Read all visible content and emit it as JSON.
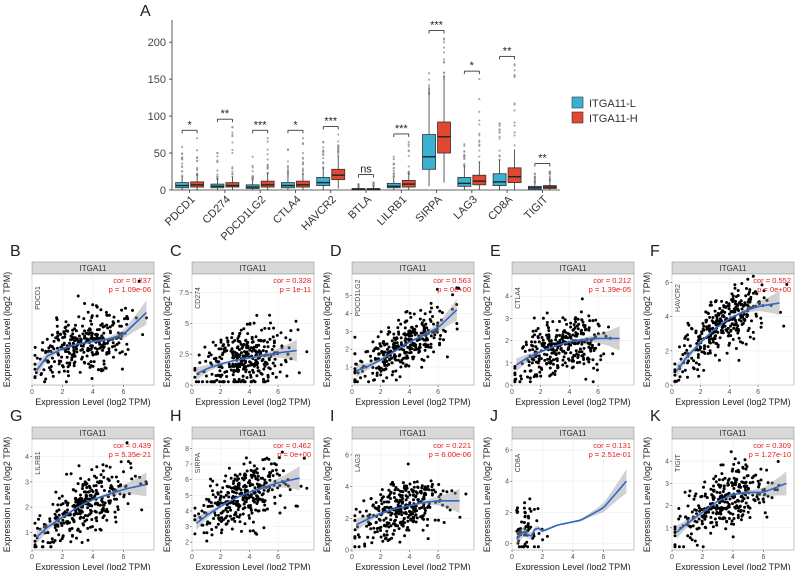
{
  "figure": {
    "panel_A": {
      "letter": "A",
      "legend": {
        "title": "",
        "entries": [
          {
            "name": "ITGA11-L",
            "color": "#3ab1d1"
          },
          {
            "name": "ITGA11-H",
            "color": "#e2472f"
          }
        ]
      }
    }
  },
  "chart_data": [
    {
      "type": "box",
      "panel": "A",
      "ylim": [
        0,
        230
      ],
      "yticks": [
        0,
        50,
        100,
        150,
        200
      ],
      "xlabel": "",
      "ylabel": "",
      "legend_position": "right",
      "categories": [
        "PDCD1",
        "CD274",
        "PDCD1LG2",
        "CTLA4",
        "HAVCR2",
        "BTLA",
        "LILRB1",
        "SIRPA",
        "LAG3",
        "CD8A",
        "TIGIT"
      ],
      "significance": [
        "*",
        "**",
        "***",
        "*",
        "***",
        "ns",
        "***",
        "***",
        "*",
        "**",
        "**"
      ],
      "series": [
        {
          "name": "ITGA11-L",
          "color": "#3ab1d1",
          "boxes": [
            {
              "q1": 3,
              "median": 6,
              "q3": 10,
              "whisker_low": 0,
              "whisker_high": 18,
              "outlier_max": 58
            },
            {
              "q1": 3,
              "median": 5,
              "q3": 8,
              "whisker_low": 0,
              "whisker_high": 15,
              "outlier_max": 50
            },
            {
              "q1": 2,
              "median": 4,
              "q3": 7,
              "whisker_low": 0,
              "whisker_high": 14,
              "outlier_max": 45
            },
            {
              "q1": 3,
              "median": 6,
              "q3": 10,
              "whisker_low": 0,
              "whisker_high": 18,
              "outlier_max": 55
            },
            {
              "q1": 6,
              "median": 10,
              "q3": 17,
              "whisker_low": 0,
              "whisker_high": 30,
              "outlier_max": 65
            },
            {
              "q1": 0,
              "median": 1,
              "q3": 2,
              "whisker_low": 0,
              "whisker_high": 4,
              "outlier_max": 8
            },
            {
              "q1": 3,
              "median": 5,
              "q3": 9,
              "whisker_low": 0,
              "whisker_high": 16,
              "outlier_max": 45
            },
            {
              "q1": 28,
              "median": 45,
              "q3": 75,
              "whisker_low": 5,
              "whisker_high": 130,
              "outlier_max": 158
            },
            {
              "q1": 5,
              "median": 9,
              "q3": 17,
              "whisker_low": 0,
              "whisker_high": 32,
              "outlier_max": 62
            },
            {
              "q1": 6,
              "median": 11,
              "q3": 22,
              "whisker_low": 0,
              "whisker_high": 40,
              "outlier_max": 90
            },
            {
              "q1": 1,
              "median": 3,
              "q3": 5,
              "whisker_low": 0,
              "whisker_high": 10,
              "outlier_max": 22
            }
          ]
        },
        {
          "name": "ITGA11-H",
          "color": "#e2472f",
          "boxes": [
            {
              "q1": 4,
              "median": 7,
              "q3": 11,
              "whisker_low": 0,
              "whisker_high": 20,
              "outlier_max": 70
            },
            {
              "q1": 4,
              "median": 6,
              "q3": 10,
              "whisker_low": 0,
              "whisker_high": 18,
              "outlier_max": 85
            },
            {
              "q1": 4,
              "median": 7,
              "q3": 12,
              "whisker_low": 0,
              "whisker_high": 22,
              "outlier_max": 70
            },
            {
              "q1": 4,
              "median": 7,
              "q3": 12,
              "whisker_low": 0,
              "whisker_high": 22,
              "outlier_max": 70
            },
            {
              "q1": 14,
              "median": 20,
              "q3": 28,
              "whisker_low": 2,
              "whisker_high": 45,
              "outlier_max": 75
            },
            {
              "q1": 0,
              "median": 1,
              "q3": 2,
              "whisker_low": 0,
              "whisker_high": 5,
              "outlier_max": 10
            },
            {
              "q1": 4,
              "median": 8,
              "q3": 13,
              "whisker_low": 0,
              "whisker_high": 22,
              "outlier_max": 65
            },
            {
              "q1": 50,
              "median": 72,
              "q3": 92,
              "whisker_low": 10,
              "whisker_high": 150,
              "outlier_max": 205
            },
            {
              "q1": 7,
              "median": 12,
              "q3": 20,
              "whisker_low": 0,
              "whisker_high": 38,
              "outlier_max": 150
            },
            {
              "q1": 10,
              "median": 18,
              "q3": 30,
              "whisker_low": 0,
              "whisker_high": 55,
              "outlier_max": 170
            },
            {
              "q1": 2,
              "median": 4,
              "q3": 6,
              "whisker_low": 0,
              "whisker_high": 12,
              "outlier_max": 25
            }
          ]
        }
      ]
    },
    {
      "type": "scatter",
      "panel": "B",
      "strip_title": "ITGA11",
      "gene": "PDCD1",
      "cor": "cor = 0.237",
      "p": "p = 1.09e-06",
      "xlim": [
        0,
        8
      ],
      "xticks": [
        0,
        2,
        4,
        6
      ],
      "ylim": [
        0,
        4.6
      ],
      "yticks": [],
      "xlabel": "Expression Level (log2 TPM)",
      "ylabel": "Expression Level (log2 TPM)",
      "fit": [
        [
          0.3,
          0.6
        ],
        [
          1,
          1.2
        ],
        [
          2,
          1.5
        ],
        [
          3,
          1.7
        ],
        [
          4,
          1.8
        ],
        [
          5,
          1.9
        ],
        [
          6,
          2.1
        ],
        [
          7.5,
          3.0
        ]
      ]
    },
    {
      "type": "scatter",
      "panel": "C",
      "strip_title": "ITGA11",
      "gene": "CD274",
      "cor": "cor = 0.328",
      "p": "p = 1e-11",
      "xlim": [
        0,
        8.5
      ],
      "xticks": [
        0,
        2,
        4,
        6
      ],
      "ylim": [
        0,
        9
      ],
      "yticks": [
        0,
        2.5,
        5,
        7.5
      ],
      "xlabel": "Expression Level (log2 TPM)",
      "ylabel": "Expression Level (log2 TPM)",
      "fit": [
        [
          0.3,
          0.9
        ],
        [
          1,
          1.3
        ],
        [
          2,
          1.7
        ],
        [
          3,
          2.0
        ],
        [
          4,
          2.2
        ],
        [
          5,
          2.4
        ],
        [
          6,
          2.6
        ],
        [
          7.3,
          2.8
        ]
      ]
    },
    {
      "type": "scatter",
      "panel": "D",
      "strip_title": "ITGA11",
      "gene": "PDCD1LG2",
      "cor": "cor = 0.563",
      "p": "p = 0e+00",
      "xlim": [
        0,
        8.5
      ],
      "xticks": [
        0,
        2,
        4,
        6
      ],
      "ylim": [
        0,
        6.2
      ],
      "yticks": [
        1,
        2,
        3,
        4,
        5
      ],
      "xlabel": "Expression Level (log2 TPM)",
      "ylabel": "Expression Level (log2 TPM)",
      "fit": [
        [
          0.3,
          0.8
        ],
        [
          1,
          1.0
        ],
        [
          2,
          1.4
        ],
        [
          3,
          1.9
        ],
        [
          4,
          2.4
        ],
        [
          5,
          2.8
        ],
        [
          6,
          3.2
        ],
        [
          7.3,
          4.2
        ]
      ]
    },
    {
      "type": "scatter",
      "panel": "E",
      "strip_title": "ITGA11",
      "gene": "CTLA4",
      "cor": "cor = 0.212",
      "p": "p = 1.39e-05",
      "xlim": [
        0,
        8.5
      ],
      "xticks": [
        0,
        2,
        4,
        6
      ],
      "ylim": [
        0,
        5
      ],
      "yticks": [
        0,
        1,
        2,
        3,
        4
      ],
      "xlabel": "Expression Level (log2 TPM)",
      "ylabel": "Expression Level (log2 TPM)",
      "fit": [
        [
          0.3,
          0.9
        ],
        [
          1,
          1.2
        ],
        [
          2,
          1.5
        ],
        [
          3,
          1.75
        ],
        [
          4,
          1.95
        ],
        [
          5,
          2.05
        ],
        [
          6,
          2.1
        ],
        [
          7.5,
          2.1
        ]
      ]
    },
    {
      "type": "scatter",
      "panel": "F",
      "strip_title": "ITGA11",
      "gene": "HAVCR2",
      "cor": "cor = 0.552",
      "p": "p = 0e+00",
      "xlim": [
        0,
        8.5
      ],
      "xticks": [
        0,
        2,
        4,
        6
      ],
      "ylim": [
        0,
        6.5
      ],
      "yticks": [
        0,
        2,
        4,
        6
      ],
      "xlabel": "Expression Level (log2 TPM)",
      "ylabel": "Expression Level (log2 TPM)",
      "fit": [
        [
          0.3,
          0.8
        ],
        [
          1,
          1.6
        ],
        [
          2,
          2.5
        ],
        [
          3,
          3.3
        ],
        [
          4,
          3.9
        ],
        [
          5,
          4.3
        ],
        [
          6,
          4.6
        ],
        [
          7.5,
          4.8
        ]
      ]
    },
    {
      "type": "scatter",
      "panel": "G",
      "strip_title": "ITGA11",
      "gene": "LILRB1",
      "cor": "cor = 0.439",
      "p": "p = 5.35e-21",
      "xlim": [
        0,
        8
      ],
      "xticks": [
        0,
        2,
        4,
        6
      ],
      "ylim": [
        0.3,
        4.7
      ],
      "yticks": [
        1,
        2,
        3,
        4
      ],
      "xlabel": "Expression Level (log2 TPM)",
      "ylabel": "Expression Level (log2 TPM)",
      "fit": [
        [
          0.3,
          0.8
        ],
        [
          1,
          1.2
        ],
        [
          2,
          1.6
        ],
        [
          3,
          2.0
        ],
        [
          4,
          2.3
        ],
        [
          5,
          2.5
        ],
        [
          6,
          2.7
        ],
        [
          7.5,
          2.9
        ]
      ]
    },
    {
      "type": "scatter",
      "panel": "H",
      "strip_title": "ITGA11",
      "gene": "SIRPA",
      "cor": "cor = 0.462",
      "p": "p = 0e+00",
      "xlim": [
        0,
        8.5
      ],
      "xticks": [
        0,
        2,
        4,
        6
      ],
      "ylim": [
        1.5,
        8.6
      ],
      "yticks": [
        2,
        3,
        4,
        5,
        6,
        7,
        8
      ],
      "xlabel": "Expression Level (log2 TPM)",
      "ylabel": "Expression Level (log2 TPM)",
      "fit": [
        [
          0.3,
          3.2
        ],
        [
          1,
          3.7
        ],
        [
          2,
          4.3
        ],
        [
          3,
          4.8
        ],
        [
          4,
          5.2
        ],
        [
          5,
          5.5
        ],
        [
          6,
          5.8
        ],
        [
          7.5,
          6.1
        ]
      ]
    },
    {
      "type": "scatter",
      "panel": "I",
      "strip_title": "ITGA11",
      "gene": "LAG3",
      "cor": "cor = 0.221",
      "p": "p = 6.00e-06",
      "xlim": [
        0,
        8.5
      ],
      "xticks": [
        0,
        2,
        4,
        6
      ],
      "ylim": [
        0,
        7
      ],
      "yticks": [
        0,
        2,
        4,
        6
      ],
      "xlabel": "Expression Level (log2 TPM)",
      "ylabel": "Expression Level (log2 TPM)",
      "fit": [
        [
          0.3,
          1.6
        ],
        [
          1,
          1.9
        ],
        [
          2,
          2.3
        ],
        [
          3,
          2.6
        ],
        [
          4,
          2.8
        ],
        [
          5,
          3.0
        ],
        [
          6,
          3.1
        ],
        [
          7.5,
          3.1
        ]
      ]
    },
    {
      "type": "scatter",
      "panel": "J",
      "strip_title": "ITGA11",
      "gene": "CD8A",
      "cor": "cor = 0.131",
      "p": "p = 2.51e-01",
      "xlim": [
        0,
        8
      ],
      "xticks": [
        0,
        2,
        4,
        6
      ],
      "ylim": [
        -0.4,
        6.7
      ],
      "yticks": [
        0,
        2,
        4,
        6
      ],
      "xlabel": "Expression Level (log2 TPM)",
      "ylabel": "Expression Level (log2 TPM)",
      "fit": [
        [
          0.3,
          0.3
        ],
        [
          0.8,
          0.8
        ],
        [
          1.2,
          0.4
        ],
        [
          1.6,
          1.1
        ],
        [
          2,
          0.8
        ],
        [
          3,
          1.2
        ],
        [
          4.5,
          1.5
        ],
        [
          6,
          2.3
        ],
        [
          7.5,
          4.0
        ]
      ]
    },
    {
      "type": "scatter",
      "panel": "K",
      "strip_title": "ITGA11",
      "gene": "TIGIT",
      "cor": "cor = 0.309",
      "p": "p = 1.27e-10",
      "xlim": [
        0,
        8
      ],
      "xticks": [
        0,
        2,
        4,
        6
      ],
      "ylim": [
        0,
        5
      ],
      "yticks": [
        1,
        2,
        3,
        4
      ],
      "xlabel": "Expression Level (log2 TPM)",
      "ylabel": "Expression Level (log2 TPM)",
      "fit": [
        [
          0.3,
          0.8
        ],
        [
          1,
          1.2
        ],
        [
          2,
          1.7
        ],
        [
          3,
          2.2
        ],
        [
          4,
          2.5
        ],
        [
          5,
          2.6
        ],
        [
          6,
          2.6
        ],
        [
          7.5,
          3.0
        ]
      ]
    }
  ]
}
